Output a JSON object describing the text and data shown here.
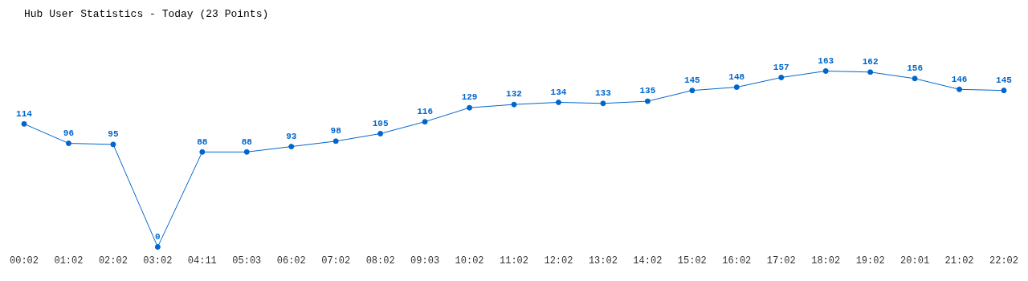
{
  "chart_data": {
    "type": "line",
    "title": "Hub User Statistics - Today (23 Points)",
    "categories": [
      "00:02",
      "01:02",
      "02:02",
      "03:02",
      "04:11",
      "05:03",
      "06:02",
      "07:02",
      "08:02",
      "09:03",
      "10:02",
      "11:02",
      "12:02",
      "13:02",
      "14:02",
      "15:02",
      "16:02",
      "17:02",
      "18:02",
      "19:02",
      "20:01",
      "21:02",
      "22:02"
    ],
    "values": [
      114,
      96,
      95,
      0,
      88,
      88,
      93,
      98,
      105,
      116,
      129,
      132,
      134,
      133,
      135,
      145,
      148,
      157,
      163,
      162,
      156,
      146,
      145
    ],
    "color": "#0066cc",
    "data_labels": true,
    "marker": "circle",
    "line_style": "solid",
    "grid": false
  }
}
